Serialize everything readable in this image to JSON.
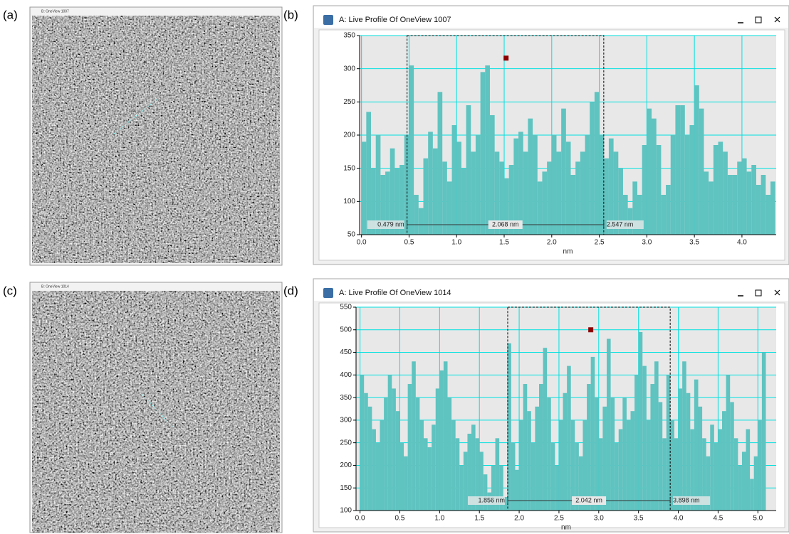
{
  "figure": {
    "panel_labels": [
      "(a)",
      "(b)",
      "(c)",
      "(d)"
    ],
    "image_titles": [
      "B: OneView 1007",
      "B: OneView 1014"
    ]
  },
  "chart_data": [
    {
      "type": "histogram",
      "title": "A: Live Profile Of OneView 1007",
      "x_label": "nm",
      "color": "#5fc3c0",
      "grid": true,
      "grid_color": "#00e0e0",
      "bins": [
        0.0,
        0.05,
        0.1,
        0.15,
        0.2,
        0.25,
        0.3,
        0.35,
        0.4,
        0.45,
        0.5,
        0.55,
        0.6,
        0.65,
        0.7,
        0.75,
        0.8,
        0.85,
        0.9,
        0.95,
        1.0,
        1.05,
        1.1,
        1.15,
        1.2,
        1.25,
        1.3,
        1.35,
        1.4,
        1.45,
        1.5,
        1.55,
        1.6,
        1.65,
        1.7,
        1.75,
        1.8,
        1.85,
        1.9,
        1.95,
        2.0,
        2.05,
        2.1,
        2.15,
        2.2,
        2.25,
        2.3,
        2.35,
        2.4,
        2.45,
        2.5,
        2.55,
        2.6,
        2.65,
        2.7,
        2.75,
        2.8,
        2.85,
        2.9,
        2.95,
        3.0,
        3.05,
        3.1,
        3.15,
        3.2,
        3.25,
        3.3,
        3.35,
        3.4,
        3.45,
        3.5,
        3.55,
        3.6,
        3.65,
        3.7,
        3.75,
        3.8,
        3.85,
        3.9,
        3.95,
        4.0,
        4.05,
        4.1,
        4.15,
        4.2,
        4.25,
        4.3,
        4.35
      ],
      "values": [
        190,
        235,
        150,
        200,
        140,
        145,
        180,
        150,
        155,
        200,
        305,
        110,
        90,
        165,
        205,
        180,
        265,
        160,
        130,
        215,
        190,
        150,
        245,
        175,
        200,
        295,
        305,
        230,
        175,
        160,
        135,
        155,
        195,
        205,
        175,
        225,
        200,
        130,
        145,
        160,
        200,
        175,
        240,
        190,
        140,
        160,
        175,
        200,
        250,
        265,
        200,
        165,
        195,
        175,
        150,
        110,
        90,
        130,
        110,
        185,
        240,
        225,
        185,
        110,
        125,
        200,
        245,
        245,
        200,
        215,
        275,
        240,
        145,
        130,
        185,
        190,
        175,
        140,
        140,
        160,
        165,
        145,
        155,
        125,
        140,
        110,
        130
      ],
      "xlim": [
        -0.02,
        4.36
      ],
      "ylim": [
        50,
        350
      ],
      "xticks": [
        {
          "value": 0,
          "label": "0.0"
        },
        0.5,
        {
          "value": 1,
          "label": "1.0"
        },
        1.5,
        {
          "value": 2,
          "label": "2.0"
        },
        2.5,
        {
          "value": 3,
          "label": "3.0"
        },
        3.5,
        {
          "value": 4,
          "label": "4.0"
        }
      ],
      "yticks": [
        50,
        100,
        150,
        200,
        250,
        300,
        350
      ],
      "markers": [
        {
          "x": 0.479,
          "label": "0.479 nm"
        },
        {
          "x": 2.547,
          "label": "2.547 nm"
        }
      ],
      "span": {
        "value": 2.068,
        "label": "2.068 nm"
      },
      "point": {
        "x": 1.52,
        "y": 316,
        "color": "#8b0000"
      }
    },
    {
      "type": "histogram",
      "title": "A: Live Profile Of OneView 1014",
      "x_label": "nm",
      "color": "#5fc3c0",
      "grid": true,
      "grid_color": "#00e0e0",
      "bins": [
        0.0,
        0.05,
        0.1,
        0.15,
        0.2,
        0.25,
        0.3,
        0.35,
        0.4,
        0.45,
        0.5,
        0.55,
        0.6,
        0.65,
        0.7,
        0.75,
        0.8,
        0.85,
        0.9,
        0.95,
        1.0,
        1.05,
        1.1,
        1.15,
        1.2,
        1.25,
        1.3,
        1.35,
        1.4,
        1.45,
        1.5,
        1.55,
        1.6,
        1.65,
        1.7,
        1.75,
        1.8,
        1.85,
        1.9,
        1.95,
        2.0,
        2.05,
        2.1,
        2.15,
        2.2,
        2.25,
        2.3,
        2.35,
        2.4,
        2.45,
        2.5,
        2.55,
        2.6,
        2.65,
        2.7,
        2.75,
        2.8,
        2.85,
        2.9,
        2.95,
        3.0,
        3.05,
        3.1,
        3.15,
        3.2,
        3.25,
        3.3,
        3.35,
        3.4,
        3.45,
        3.5,
        3.55,
        3.6,
        3.65,
        3.7,
        3.75,
        3.8,
        3.85,
        3.9,
        3.95,
        4.0,
        4.05,
        4.1,
        4.15,
        4.2,
        4.25,
        4.3,
        4.35,
        4.4,
        4.45,
        4.5,
        4.55,
        4.6,
        4.65,
        4.7,
        4.75,
        4.8,
        4.85,
        4.9,
        4.95,
        5.0,
        5.05,
        5.1
      ],
      "values": [
        400,
        360,
        330,
        280,
        250,
        300,
        350,
        400,
        370,
        320,
        250,
        220,
        380,
        430,
        350,
        300,
        260,
        240,
        290,
        370,
        410,
        430,
        350,
        300,
        260,
        200,
        230,
        270,
        290,
        260,
        230,
        180,
        140,
        200,
        260,
        200,
        130,
        470,
        250,
        190,
        300,
        380,
        320,
        250,
        330,
        380,
        460,
        350,
        250,
        200,
        300,
        360,
        420,
        300,
        250,
        220,
        300,
        380,
        440,
        350,
        260,
        330,
        480,
        350,
        250,
        280,
        350,
        300,
        320,
        400,
        495,
        420,
        300,
        380,
        430,
        340,
        260,
        400,
        300,
        260,
        370,
        430,
        360,
        280,
        390,
        330,
        260,
        220,
        290,
        250,
        280,
        320,
        400,
        340,
        260,
        200,
        230,
        280,
        170,
        220,
        300,
        450
      ],
      "xlim": [
        -0.05,
        5.23
      ],
      "ylim": [
        100,
        550
      ],
      "xticks": [
        {
          "value": 0,
          "label": "0.0"
        },
        0.5,
        {
          "value": 1,
          "label": "1.0"
        },
        1.5,
        {
          "value": 2,
          "label": "2.0"
        },
        2.5,
        {
          "value": 3,
          "label": "3.0"
        },
        3.5,
        {
          "value": 4,
          "label": "4.0"
        },
        4.5,
        {
          "value": 5,
          "label": "5.0"
        }
      ],
      "yticks": [
        100,
        150,
        200,
        250,
        300,
        350,
        400,
        450,
        500,
        550
      ],
      "markers": [
        {
          "x": 1.856,
          "label": "1.856 nm"
        },
        {
          "x": 3.898,
          "label": "3.898 nm"
        }
      ],
      "span": {
        "value": 2.042,
        "label": "2.042 nm"
      },
      "point": {
        "x": 2.9,
        "y": 500,
        "color": "#8b0000"
      }
    }
  ]
}
